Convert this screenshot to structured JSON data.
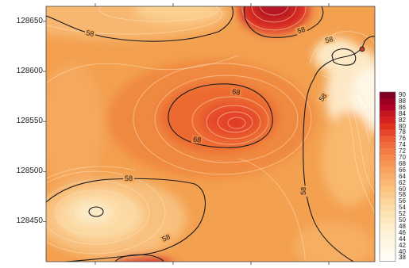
{
  "map": {
    "y_ticks": [
      {
        "label": "128650",
        "value": 128650
      },
      {
        "label": "128600",
        "value": 128600
      },
      {
        "label": "128550",
        "value": 128550
      },
      {
        "label": "128500",
        "value": 128500
      },
      {
        "label": "128450",
        "value": 128450
      }
    ],
    "y_range": [
      128410,
      128665
    ],
    "contour_labels": [
      "58",
      "58",
      "68",
      "68",
      "58",
      "58",
      "58",
      "58",
      "58"
    ]
  },
  "legend": {
    "levels": [
      "90",
      "88",
      "86",
      "84",
      "82",
      "80",
      "78",
      "76",
      "74",
      "72",
      "70",
      "68",
      "66",
      "64",
      "62",
      "60",
      "58",
      "56",
      "54",
      "52",
      "50",
      "48",
      "46",
      "44",
      "42",
      "40",
      "38"
    ],
    "colors": [
      "#800026",
      "#99001f",
      "#b10026",
      "#c4161c",
      "#d42020",
      "#e0301e",
      "#e8462a",
      "#ee5c36",
      "#f26d3e",
      "#f47c45",
      "#f68a4d",
      "#f79656",
      "#f8a25f",
      "#f9ad69",
      "#fab874",
      "#fbc280",
      "#fbcb8d",
      "#fcd49a",
      "#fcdba7",
      "#fde2b4",
      "#fde8c0",
      "#feedcb",
      "#fef1d5",
      "#fff4de",
      "#fff7e6",
      "#fffaee",
      "#fffdf6"
    ]
  },
  "colors": {
    "background": "#f5a356",
    "contour_line": "#1a1a1a"
  }
}
